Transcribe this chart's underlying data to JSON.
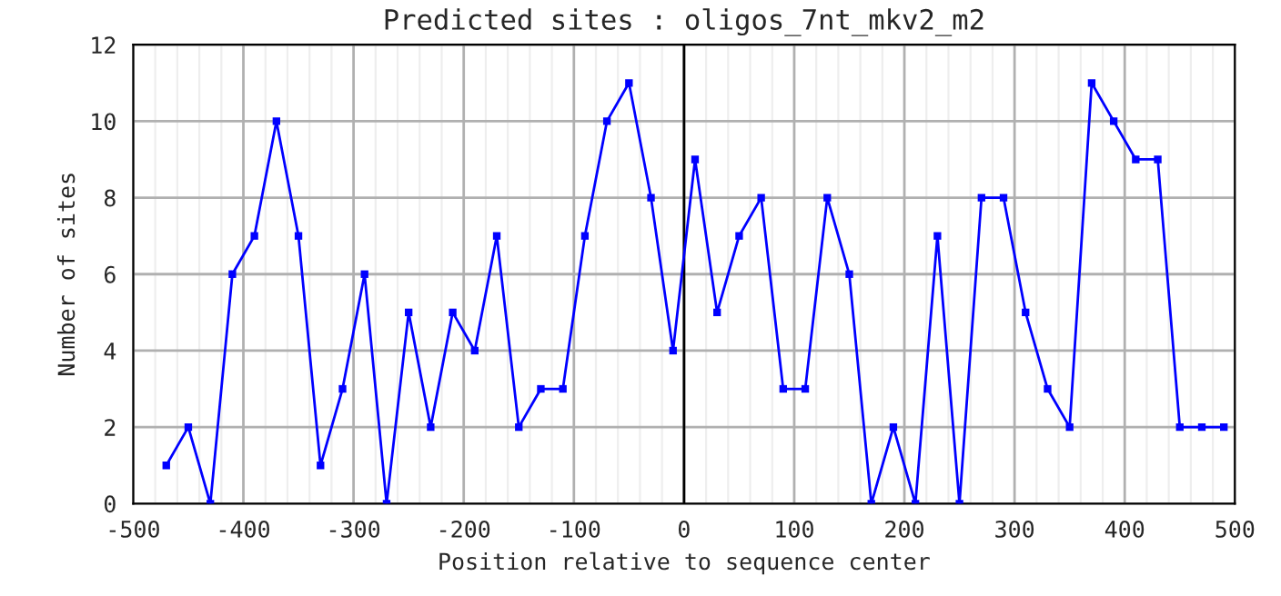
{
  "chart_data": {
    "type": "line",
    "title": "Predicted sites : oligos_7nt_mkv2_m2",
    "xlabel": "Position relative to sequence center",
    "ylabel": "Number of sites",
    "x": [
      -470,
      -450,
      -430,
      -410,
      -390,
      -370,
      -350,
      -330,
      -310,
      -290,
      -270,
      -250,
      -230,
      -210,
      -190,
      -170,
      -150,
      -130,
      -110,
      -90,
      -70,
      -50,
      -30,
      -10,
      10,
      30,
      50,
      70,
      90,
      110,
      130,
      150,
      170,
      190,
      210,
      230,
      250,
      270,
      290,
      310,
      330,
      350,
      370,
      390,
      410,
      430,
      450,
      470,
      490
    ],
    "series": [
      {
        "color": "#0000ff",
        "values": [
          1,
          2,
          0,
          6,
          7,
          10,
          7,
          1,
          3,
          6,
          0,
          5,
          2,
          5,
          4,
          7,
          2,
          3,
          3,
          7,
          10,
          11,
          8,
          4,
          9,
          5,
          7,
          8,
          3,
          3,
          8,
          6,
          0,
          2,
          0,
          7,
          0,
          8,
          8,
          5,
          3,
          2,
          11,
          10,
          9,
          9,
          2,
          2,
          2
        ]
      }
    ],
    "xlim": [
      -500,
      500
    ],
    "xticks": [
      -500,
      -400,
      -300,
      -200,
      -100,
      0,
      100,
      200,
      300,
      400,
      500
    ],
    "ylim": [
      0,
      12
    ],
    "yticks": [
      0,
      2,
      4,
      6,
      8,
      10,
      12
    ],
    "ref_lines": [
      {
        "axis": "x",
        "value": 0,
        "color": "#000000"
      }
    ],
    "grid": true,
    "marker": "square",
    "line_style": "solid",
    "legend": false
  }
}
